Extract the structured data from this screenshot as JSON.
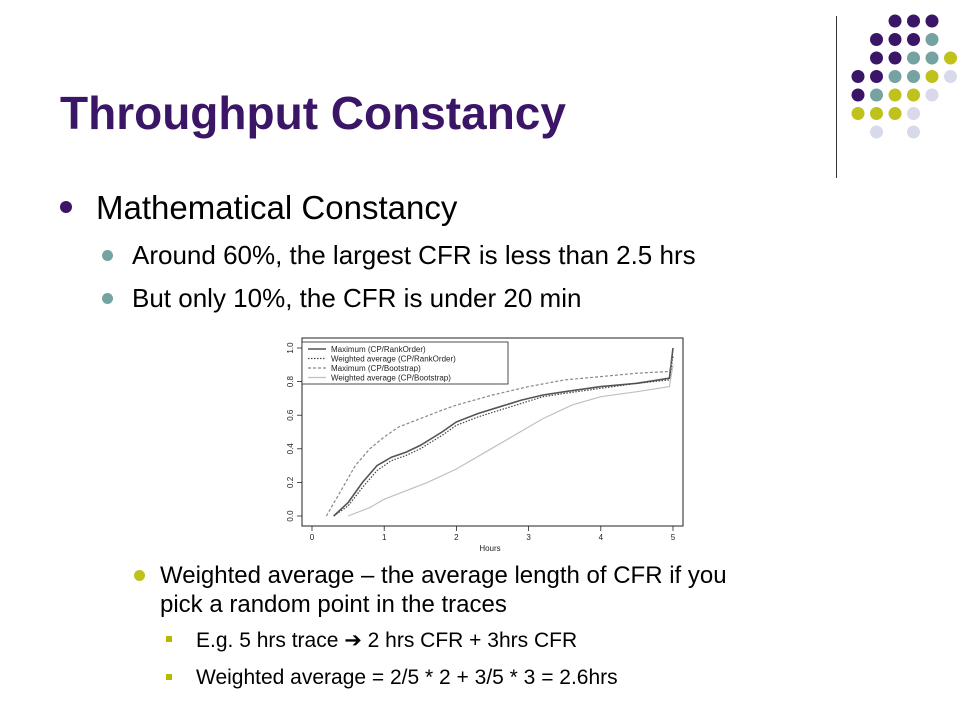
{
  "slide": {
    "title": "Throughput Constancy",
    "colors": {
      "title": "#3b1566",
      "dot_purple": "#3b1566",
      "dot_teal": "#74a3a1",
      "dot_olive": "#bfc21a",
      "dot_lavender": "#d9d9ec"
    },
    "bullets": {
      "level1": "Mathematical Constancy",
      "level2": [
        "Around 60%, the largest CFR is less than 2.5 hrs",
        "But only 10%, the CFR is under 20 min"
      ],
      "level3": [
        "Weighted average – the average length of CFR if you",
        "pick a random point in the traces"
      ],
      "level4": [
        "E.g. 5 hrs trace ➔ 2 hrs CFR + 3hrs CFR",
        "Weighted average = 2/5 * 2 + 3/5 * 3 = 2.6hrs"
      ]
    }
  },
  "chart_data": {
    "type": "line",
    "title": "",
    "xlabel": "Hours",
    "ylabel": "",
    "xlim": [
      0,
      5
    ],
    "ylim": [
      0,
      1
    ],
    "x_ticks": [
      "0",
      "1",
      "2",
      "3",
      "4",
      "5"
    ],
    "y_ticks": [
      "0.0",
      "0.2",
      "0.4",
      "0.6",
      "0.8",
      "1.0"
    ],
    "legend_position": "top-left",
    "grid": false,
    "series": [
      {
        "name": "Maximum (CP/RankOrder)",
        "style": "solid",
        "color": "#555555",
        "x": [
          0.3,
          0.5,
          0.7,
          0.9,
          1.1,
          1.3,
          1.5,
          1.8,
          2.0,
          2.3,
          2.6,
          2.9,
          3.2,
          3.5,
          4.0,
          4.5,
          4.95,
          5.0
        ],
        "y": [
          0.0,
          0.08,
          0.2,
          0.3,
          0.35,
          0.38,
          0.42,
          0.5,
          0.56,
          0.61,
          0.65,
          0.69,
          0.72,
          0.74,
          0.77,
          0.79,
          0.82,
          1.0
        ]
      },
      {
        "name": "Weighted average (CP/RankOrder)",
        "style": "dotted",
        "color": "#444444",
        "x": [
          0.3,
          0.5,
          0.7,
          0.9,
          1.1,
          1.3,
          1.5,
          1.8,
          2.0,
          2.3,
          2.6,
          2.9,
          3.2,
          3.5,
          4.0,
          4.5,
          4.95,
          5.0
        ],
        "y": [
          0.0,
          0.06,
          0.17,
          0.27,
          0.33,
          0.36,
          0.4,
          0.48,
          0.54,
          0.59,
          0.63,
          0.67,
          0.71,
          0.73,
          0.76,
          0.79,
          0.81,
          0.95
        ]
      },
      {
        "name": "Maximum (CP/Bootstrap)",
        "style": "dashed",
        "color": "#888888",
        "x": [
          0.2,
          0.4,
          0.6,
          0.8,
          1.0,
          1.2,
          1.5,
          1.8,
          2.0,
          2.5,
          3.0,
          3.5,
          4.0,
          4.5,
          4.95,
          5.0
        ],
        "y": [
          0.0,
          0.15,
          0.3,
          0.4,
          0.47,
          0.53,
          0.58,
          0.63,
          0.66,
          0.72,
          0.77,
          0.81,
          0.83,
          0.85,
          0.86,
          0.95
        ]
      },
      {
        "name": "Weighted average (CP/Bootstrap)",
        "style": "solid",
        "color": "#c0c0c0",
        "x": [
          0.5,
          0.8,
          1.0,
          1.3,
          1.6,
          2.0,
          2.4,
          2.8,
          3.2,
          3.6,
          4.0,
          4.5,
          4.95,
          5.0
        ],
        "y": [
          0.0,
          0.05,
          0.1,
          0.15,
          0.2,
          0.28,
          0.38,
          0.48,
          0.58,
          0.66,
          0.71,
          0.74,
          0.77,
          0.9
        ]
      }
    ]
  }
}
